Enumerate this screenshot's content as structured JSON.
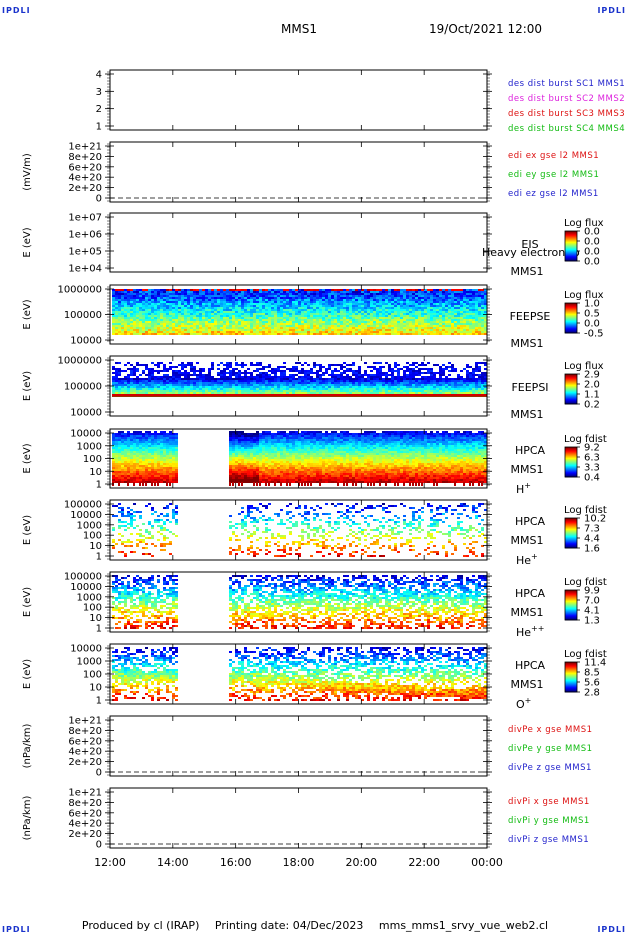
{
  "corner_label": "IPDLI",
  "header": {
    "spacecraft": "MMS1",
    "datetime": "19/Oct/2021 12:00"
  },
  "footer": {
    "produced_by": "Produced by cl (IRAP)",
    "printing_date": "Printing date: 04/Dec/2023",
    "file": "mms_mms1_srvy_vue_web2.cl"
  },
  "colors": {
    "blue": "#2222cc",
    "magenta": "#dd22dd",
    "red": "#dd1111",
    "green": "#11bb11"
  },
  "chart_data": {
    "type": "heatmap",
    "x_ticks": [
      "12:00",
      "14:00",
      "16:00",
      "18:00",
      "20:00",
      "22:00",
      "00:00"
    ],
    "panels": [
      {
        "id": "des-dist",
        "ylabel": "",
        "yticks": [
          "4",
          "3",
          "2",
          "1"
        ],
        "labels": [
          {
            "text": "des dist burst SC1 MMS1",
            "color": "blue"
          },
          {
            "text": "des dist burst SC2 MMS2",
            "color": "magenta"
          },
          {
            "text": "des dist burst SC3 MMS3",
            "color": "red"
          },
          {
            "text": "des dist burst SC4 MMS4",
            "color": "green"
          }
        ]
      },
      {
        "id": "edi",
        "ylabel": "(mV/m)",
        "yticks": [
          "1e+21",
          "8e+20",
          "6e+20",
          "4e+20",
          "2e+20",
          "0"
        ],
        "zero_line": true,
        "labels": [
          {
            "text": "edi ex gse l2 MMS1",
            "color": "red"
          },
          {
            "text": "edi ey gse l2 MMS1",
            "color": "green"
          },
          {
            "text": "edi ez gse l2 MMS1",
            "color": "blue"
          }
        ]
      },
      {
        "id": "eis",
        "ylabel": "E (eV)",
        "yticks": [
          "1e+07",
          "1e+06",
          "1e+05",
          "1e+04"
        ],
        "instrument": [
          "EIS",
          "MMS1"
        ],
        "overlay": "Heavy electron to",
        "colorbar": {
          "title": "Log flux",
          "ticks": [
            "0.0",
            "0.0",
            "0.0",
            "0.0"
          ]
        }
      },
      {
        "id": "feepse",
        "ylabel": "E (eV)",
        "yticks": [
          "1000000",
          "100000",
          "10000"
        ],
        "instrument": [
          "FEEPSE",
          "MMS1"
        ],
        "spectrogram": "feeps_e",
        "colorbar": {
          "title": "Log flux",
          "ticks": [
            "1.0",
            "0.5",
            "0.0",
            "-0.5"
          ]
        }
      },
      {
        "id": "feepsi",
        "ylabel": "E (eV)",
        "yticks": [
          "1000000",
          "100000",
          "10000"
        ],
        "instrument": [
          "FEEPSI",
          "MMS1"
        ],
        "spectrogram": "feeps_i",
        "colorbar": {
          "title": "Log flux",
          "ticks": [
            "2.9",
            "2.0",
            "1.1",
            "0.2"
          ]
        }
      },
      {
        "id": "hpca-h",
        "ylabel": "E (eV)",
        "yticks": [
          "10000",
          "1000",
          "100",
          "10",
          "1"
        ],
        "instrument": [
          "HPCA",
          "MMS1"
        ],
        "species": "H+",
        "spectrogram": "hpca_h",
        "colorbar": {
          "title": "Log fdist",
          "ticks": [
            "9.2",
            "6.3",
            "3.3",
            "0.4"
          ]
        }
      },
      {
        "id": "hpca-he",
        "ylabel": "E (eV)",
        "yticks": [
          "100000",
          "10000",
          "1000",
          "100",
          "10",
          "1"
        ],
        "instrument": [
          "HPCA",
          "MMS1"
        ],
        "species": "He+",
        "spectrogram": "hpca_he",
        "colorbar": {
          "title": "Log fdist",
          "ticks": [
            "10.2",
            "7.3",
            "4.4",
            "1.6"
          ]
        }
      },
      {
        "id": "hpca-he2",
        "ylabel": "E (eV)",
        "yticks": [
          "100000",
          "10000",
          "1000",
          "100",
          "10",
          "1"
        ],
        "instrument": [
          "HPCA",
          "MMS1"
        ],
        "species": "He++",
        "spectrogram": "hpca_he2",
        "colorbar": {
          "title": "Log fdist",
          "ticks": [
            "9.9",
            "7.0",
            "4.1",
            "1.3"
          ]
        }
      },
      {
        "id": "hpca-o",
        "ylabel": "E (eV)",
        "yticks": [
          "10000",
          "1000",
          "100",
          "10",
          "1"
        ],
        "instrument": [
          "HPCA",
          "MMS1"
        ],
        "species": "O+",
        "spectrogram": "hpca_o",
        "colorbar": {
          "title": "Log fdist",
          "ticks": [
            "11.4",
            "8.5",
            "5.6",
            "2.8"
          ]
        }
      },
      {
        "id": "divpe",
        "ylabel": "(nPa/km)",
        "yticks": [
          "1e+21",
          "8e+20",
          "6e+20",
          "4e+20",
          "2e+20",
          "0"
        ],
        "zero_line": true,
        "labels": [
          {
            "text": "divPe x gse MMS1",
            "color": "red"
          },
          {
            "text": "divPe y gse MMS1",
            "color": "green"
          },
          {
            "text": "divPe z gse MMS1",
            "color": "blue"
          }
        ]
      },
      {
        "id": "divpi",
        "ylabel": "(nPa/km)",
        "yticks": [
          "1e+21",
          "8e+20",
          "6e+20",
          "4e+20",
          "2e+20",
          "0"
        ],
        "zero_line": true,
        "labels": [
          {
            "text": "divPi x gse MMS1",
            "color": "red"
          },
          {
            "text": "divPi y gse MMS1",
            "color": "green"
          },
          {
            "text": "divPi z gse MMS1",
            "color": "blue"
          }
        ]
      }
    ],
    "data_gaps": {
      "hpca": [
        [
          "14:05",
          "15:45"
        ]
      ]
    }
  }
}
